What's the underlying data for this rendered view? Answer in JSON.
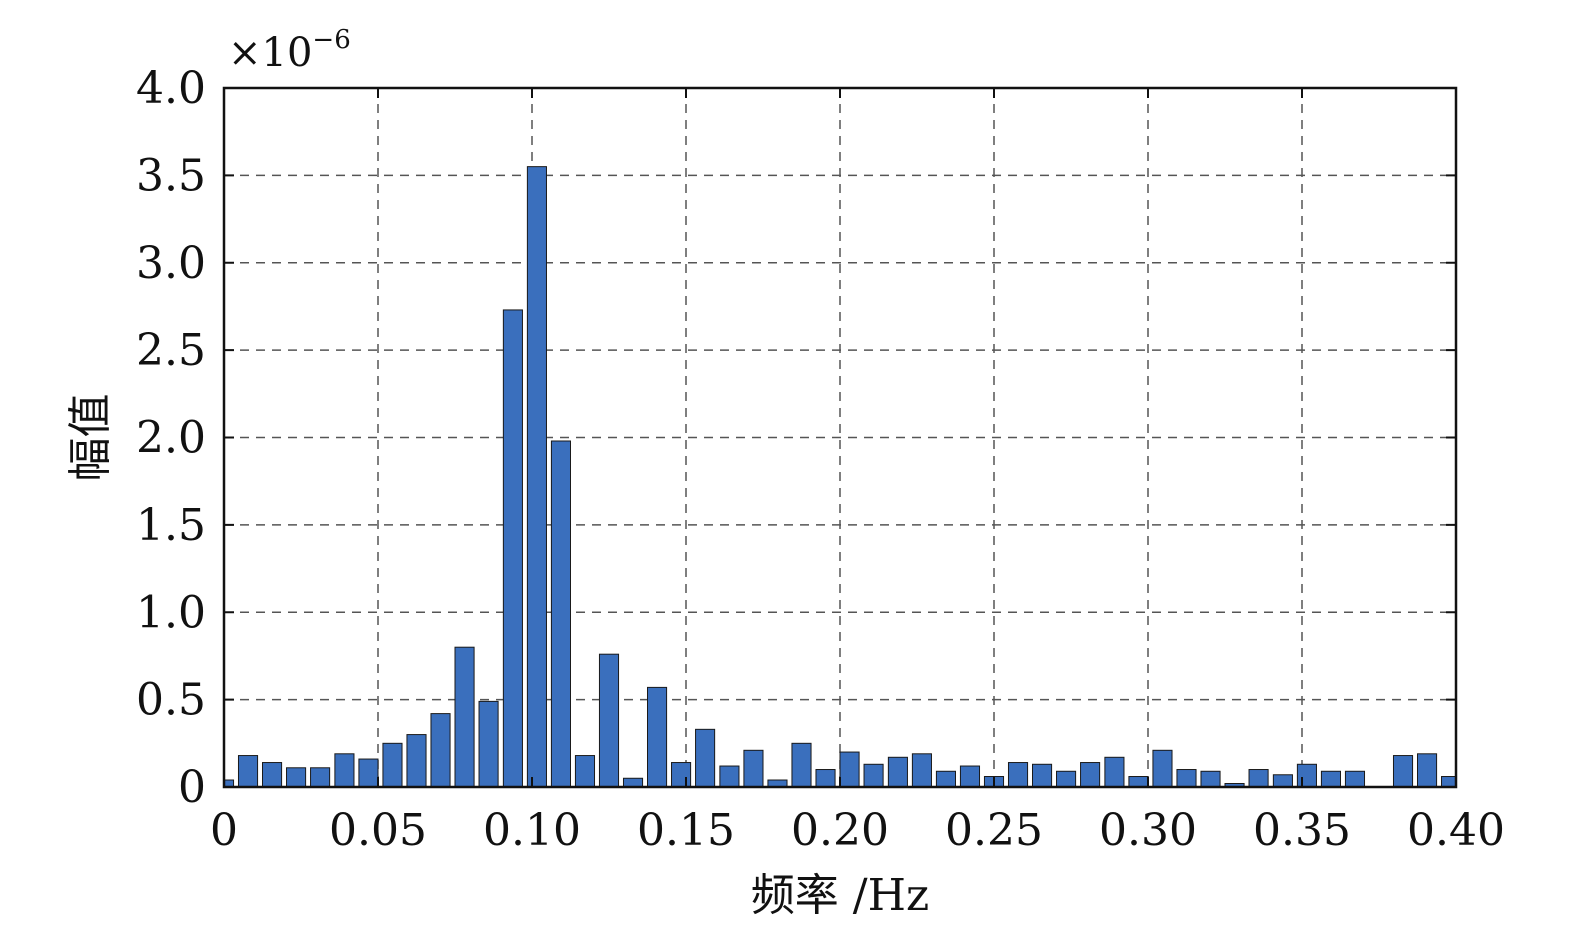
{
  "chart_data": {
    "type": "bar",
    "xlabel": "频率 /Hz",
    "ylabel": "幅值",
    "y_multiplier": "×10",
    "y_exponent": "−6",
    "xlim": [
      0,
      0.4
    ],
    "ylim": [
      0,
      4.0
    ],
    "grid": true,
    "bar_color": "#3a6fbd",
    "x_ticks": [
      0,
      0.05,
      0.1,
      0.15,
      0.2,
      0.25,
      0.3,
      0.35,
      0.4
    ],
    "x_tick_labels": [
      "0",
      "0.05",
      "0.10",
      "0.15",
      "0.20",
      "0.25",
      "0.30",
      "0.35",
      "0.40"
    ],
    "y_ticks": [
      0,
      0.5,
      1.0,
      1.5,
      2.0,
      2.5,
      3.0,
      3.5,
      4.0
    ],
    "y_tick_labels": [
      "0",
      "0.5",
      "1.0",
      "1.5",
      "2.0",
      "2.5",
      "3.0",
      "3.5",
      "4.0"
    ],
    "bar_width": 0.0062,
    "x": [
      0.0,
      0.0078,
      0.0156,
      0.0234,
      0.0312,
      0.0391,
      0.0469,
      0.0547,
      0.0625,
      0.0703,
      0.0781,
      0.0859,
      0.0938,
      0.1016,
      0.1094,
      0.1172,
      0.125,
      0.1328,
      0.1406,
      0.1484,
      0.1562,
      0.1641,
      0.1719,
      0.1797,
      0.1875,
      0.1953,
      0.2031,
      0.2109,
      0.2188,
      0.2266,
      0.2344,
      0.2422,
      0.25,
      0.2578,
      0.2656,
      0.2734,
      0.2812,
      0.2891,
      0.2969,
      0.3047,
      0.3125,
      0.3203,
      0.3281,
      0.3359,
      0.3438,
      0.3516,
      0.3594,
      0.3672,
      0.375,
      0.3828,
      0.3906,
      0.3984
    ],
    "values": [
      0.04,
      0.18,
      0.14,
      0.11,
      0.11,
      0.19,
      0.16,
      0.25,
      0.3,
      0.42,
      0.8,
      0.49,
      2.73,
      3.55,
      1.98,
      0.18,
      0.76,
      0.05,
      0.57,
      0.14,
      0.33,
      0.12,
      0.21,
      0.04,
      0.25,
      0.1,
      0.2,
      0.13,
      0.17,
      0.19,
      0.09,
      0.12,
      0.06,
      0.14,
      0.13,
      0.09,
      0.14,
      0.17,
      0.06,
      0.21,
      0.1,
      0.09,
      0.02,
      0.1,
      0.07,
      0.13,
      0.09,
      0.09,
      0.0,
      0.18,
      0.19,
      0.06
    ]
  }
}
